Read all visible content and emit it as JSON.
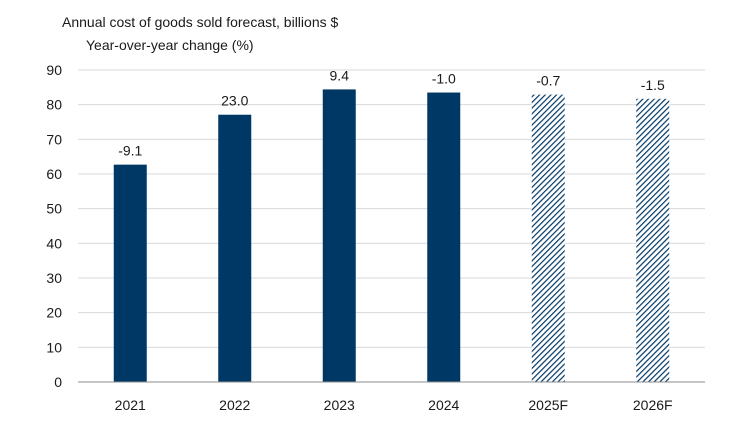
{
  "chart_data": {
    "type": "bar",
    "title": "Annual cost of goods sold forecast, billions $",
    "subtitle": "Year-over-year change (%)",
    "categories": [
      "2021",
      "2022",
      "2023",
      "2024",
      "2025F",
      "2026F"
    ],
    "values": [
      62.7,
      77.1,
      84.4,
      83.5,
      82.9,
      81.7
    ],
    "data_labels": [
      "-9.1",
      "23.0",
      "9.4",
      "-1.0",
      "-0.7",
      "-1.5"
    ],
    "forecast": [
      false,
      false,
      false,
      false,
      true,
      true
    ],
    "ylim": [
      0,
      90
    ],
    "yticks": [
      0,
      10,
      20,
      30,
      40,
      50,
      60,
      70,
      80,
      90
    ],
    "ytick_labels": [
      "0",
      "10",
      "20",
      "30",
      "40",
      "50",
      "60",
      "70",
      "80",
      "90"
    ],
    "grid": true,
    "xlabel": "",
    "ylabel": "",
    "bar_color": "#003865",
    "forecast_hatch_color": "#003865",
    "grid_color": "#d9d9d9",
    "axis_color": "#8c8c8c"
  }
}
